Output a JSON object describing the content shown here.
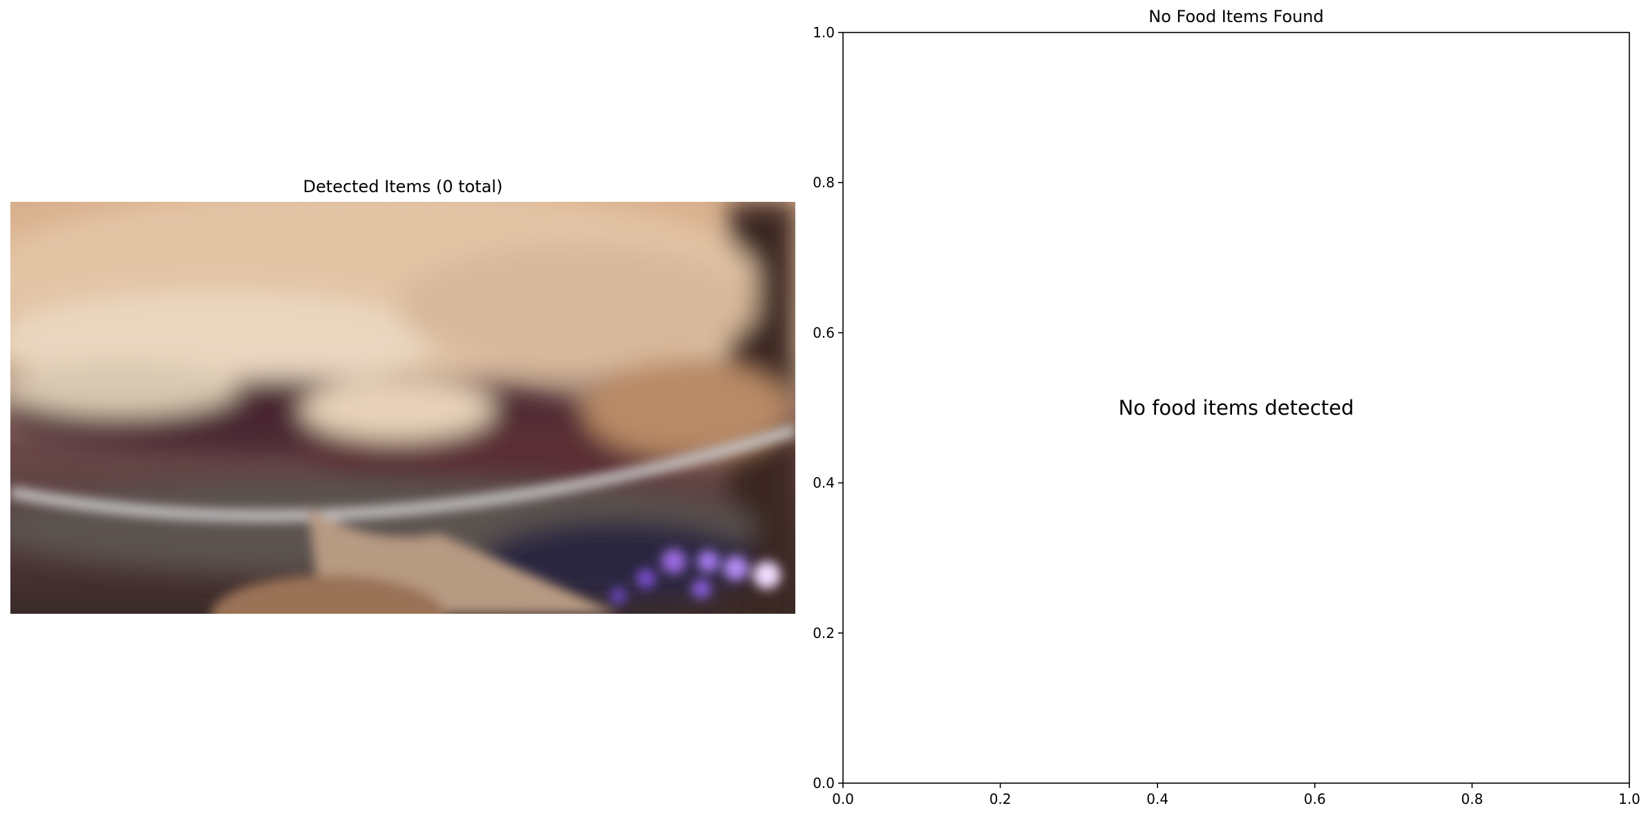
{
  "left_panel": {
    "title": "Detected Items (0 total)",
    "image_icon": "blurred-food-photo"
  },
  "chart_data": {
    "type": "scatter",
    "title": "No Food Items Found",
    "xlabel": "",
    "ylabel": "",
    "xlim": [
      0,
      1
    ],
    "ylim": [
      0,
      1
    ],
    "x_ticks": [
      "0.0",
      "0.2",
      "0.4",
      "0.6",
      "0.8",
      "1.0"
    ],
    "y_ticks": [
      "0.0",
      "0.2",
      "0.4",
      "0.6",
      "0.8",
      "1.0"
    ],
    "series": [],
    "grid": false,
    "annotations": [
      {
        "text": "No food items detected",
        "x": 0.5,
        "y": 0.5
      }
    ]
  }
}
